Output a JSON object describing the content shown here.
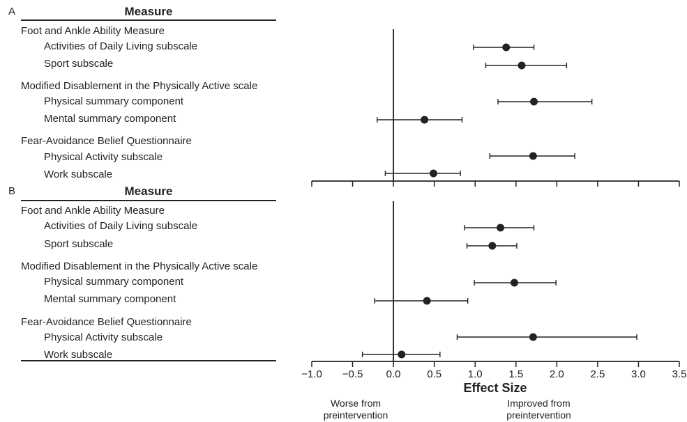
{
  "panels": [
    {
      "letter": "A",
      "header": "Measure",
      "rows": [
        {
          "label": "Foot and Ankle Ability Measure",
          "kind": "group"
        },
        {
          "label": "Activities of Daily Living subscale",
          "kind": "sub"
        },
        {
          "label": "Sport subscale",
          "kind": "sub"
        },
        {
          "label": "Modified Disablement in the Physically Active scale",
          "kind": "group"
        },
        {
          "label": "Physical summary component",
          "kind": "sub"
        },
        {
          "label": "Mental summary component",
          "kind": "sub"
        },
        {
          "label": "Fear-Avoidance Belief Questionnaire",
          "kind": "group"
        },
        {
          "label": "Physical Activity subscale",
          "kind": "sub"
        },
        {
          "label": "Work subscale",
          "kind": "sub"
        }
      ]
    },
    {
      "letter": "B",
      "header": "Measure",
      "rows": [
        {
          "label": "Foot and Ankle Ability Measure",
          "kind": "group"
        },
        {
          "label": "Activities of Daily Living subscale",
          "kind": "sub"
        },
        {
          "label": "Sport subscale",
          "kind": "sub"
        },
        {
          "label": "Modified Disablement in the Physically Active scale",
          "kind": "group"
        },
        {
          "label": "Physical summary component",
          "kind": "sub"
        },
        {
          "label": "Mental summary component",
          "kind": "sub"
        },
        {
          "label": "Fear-Avoidance Belief Questionnaire",
          "kind": "group"
        },
        {
          "label": "Physical Activity subscale",
          "kind": "sub"
        },
        {
          "label": "Work subscale",
          "kind": "sub"
        }
      ]
    }
  ],
  "axis": {
    "label": "Effect Size",
    "ticks": [
      "−1.0",
      "−0.5",
      "0.0",
      "0.5",
      "1.0",
      "1.5",
      "2.0",
      "2.5",
      "3.0",
      "3.5"
    ],
    "tick_values": [
      -1.0,
      -0.5,
      0.0,
      0.5,
      1.0,
      1.5,
      2.0,
      2.5,
      3.0,
      3.5
    ]
  },
  "footer": {
    "left": "Worse from\npreintervention",
    "right": "Improved from\npreintervention"
  },
  "chart_data": [
    {
      "type": "scatter",
      "subtype": "forest",
      "panel": "A",
      "xlim": [
        -1.0,
        3.5
      ],
      "reference_line": 0.0,
      "points": [
        {
          "measure": "Activities of Daily Living subscale",
          "estimate": 1.38,
          "ci_low": 0.98,
          "ci_high": 1.72
        },
        {
          "measure": "Sport subscale",
          "estimate": 1.57,
          "ci_low": 1.13,
          "ci_high": 2.12
        },
        {
          "measure": "Physical summary component",
          "estimate": 1.72,
          "ci_low": 1.28,
          "ci_high": 2.43
        },
        {
          "measure": "Mental summary component",
          "estimate": 0.38,
          "ci_low": -0.2,
          "ci_high": 0.84
        },
        {
          "measure": "Physical Activity subscale",
          "estimate": 1.71,
          "ci_low": 1.18,
          "ci_high": 2.22
        },
        {
          "measure": "Work subscale",
          "estimate": 0.49,
          "ci_low": -0.1,
          "ci_high": 0.82
        }
      ]
    },
    {
      "type": "scatter",
      "subtype": "forest",
      "panel": "B",
      "xlim": [
        -1.0,
        3.5
      ],
      "reference_line": 0.0,
      "xlabel": "Effect Size",
      "points": [
        {
          "measure": "Activities of Daily Living subscale",
          "estimate": 1.31,
          "ci_low": 0.87,
          "ci_high": 1.72
        },
        {
          "measure": "Sport subscale",
          "estimate": 1.21,
          "ci_low": 0.9,
          "ci_high": 1.51
        },
        {
          "measure": "Physical summary component",
          "estimate": 1.48,
          "ci_low": 0.99,
          "ci_high": 1.99
        },
        {
          "measure": "Mental summary component",
          "estimate": 0.41,
          "ci_low": -0.23,
          "ci_high": 0.91
        },
        {
          "measure": "Physical Activity subscale",
          "estimate": 1.71,
          "ci_low": 0.78,
          "ci_high": 2.98
        },
        {
          "measure": "Work subscale",
          "estimate": 0.1,
          "ci_low": -0.38,
          "ci_high": 0.57
        }
      ]
    }
  ]
}
